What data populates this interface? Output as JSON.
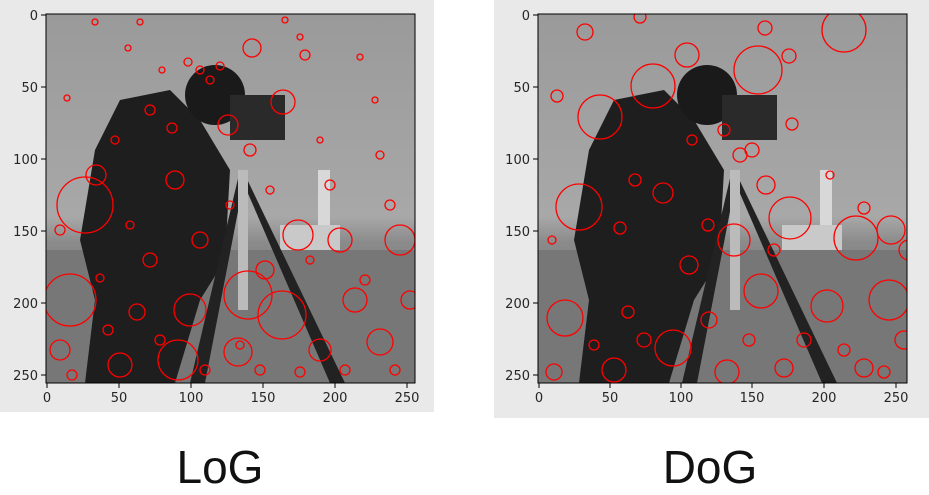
{
  "panels": [
    {
      "id": "log",
      "caption": "LoG",
      "image": "cameraman grayscale photo with red blob-detection circles",
      "x_ticks": [
        "0",
        "50",
        "100",
        "150",
        "200",
        "250"
      ],
      "y_ticks": [
        "0",
        "50",
        "100",
        "150",
        "200",
        "250"
      ],
      "circle_color": "#ff0000"
    },
    {
      "id": "dog",
      "caption": "DoG",
      "image": "cameraman grayscale photo with red blob-detection circles",
      "x_ticks": [
        "0",
        "50",
        "100",
        "150",
        "200",
        "250"
      ],
      "y_ticks": [
        "0",
        "50",
        "100",
        "150",
        "200",
        "250"
      ],
      "circle_color": "#ff0000"
    }
  ],
  "colors": {
    "panel_background": "#e9e9e9",
    "marker": "#ff0000"
  }
}
